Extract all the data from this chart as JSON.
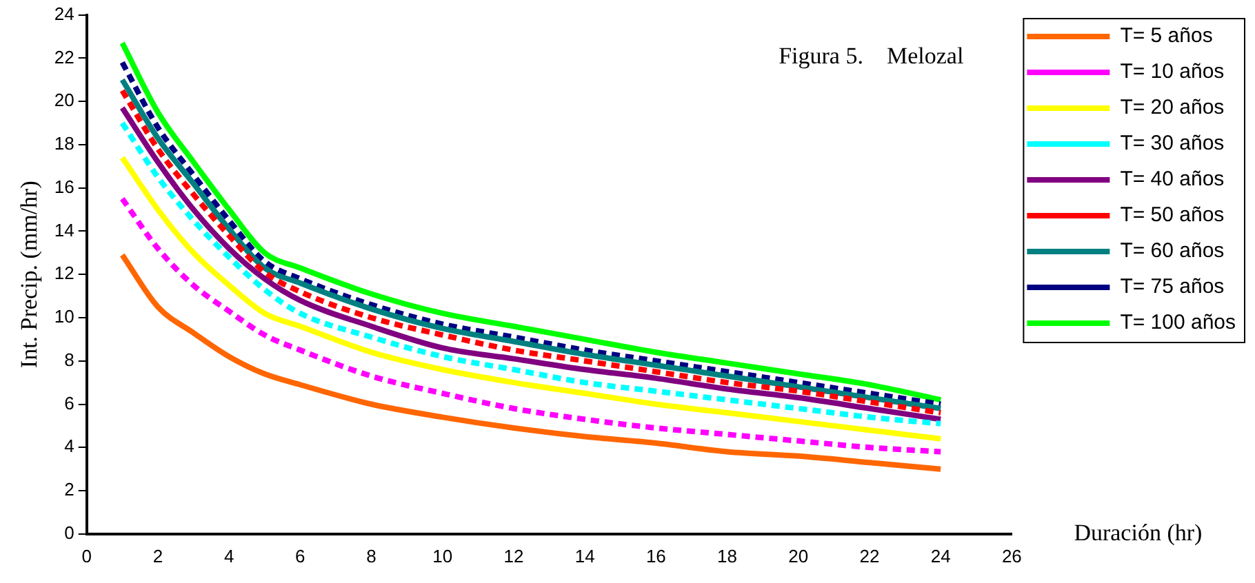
{
  "chart_data": {
    "type": "line",
    "title": "Figura 5.    Melozal",
    "xlabel": "Duración (hr)",
    "ylabel": "Int. Precip. (mm/hr)",
    "x": [
      1,
      2,
      3,
      4,
      5,
      6,
      8,
      10,
      12,
      14,
      16,
      18,
      20,
      22,
      24
    ],
    "series": [
      {
        "name": "T= 5 años",
        "color": "#ff6600",
        "line_style": "solid",
        "values": [
          12.9,
          10.5,
          9.3,
          8.2,
          7.4,
          6.9,
          6.0,
          5.4,
          4.9,
          4.5,
          4.2,
          3.8,
          3.6,
          3.3,
          3.0
        ]
      },
      {
        "name": "T= 10 años",
        "color": "#ff00ff",
        "line_style": "dashed",
        "values": [
          15.5,
          13.2,
          11.5,
          10.3,
          9.2,
          8.5,
          7.3,
          6.5,
          5.8,
          5.3,
          4.9,
          4.6,
          4.3,
          4.0,
          3.8
        ]
      },
      {
        "name": "T= 20 años",
        "color": "#ffff00",
        "line_style": "solid",
        "values": [
          17.4,
          15.0,
          13.0,
          11.5,
          10.2,
          9.6,
          8.4,
          7.6,
          7.0,
          6.5,
          6.0,
          5.6,
          5.2,
          4.8,
          4.4
        ]
      },
      {
        "name": "T= 30 años",
        "color": "#00ffff",
        "line_style": "dashed",
        "values": [
          19.0,
          16.5,
          14.5,
          12.8,
          11.3,
          10.2,
          9.1,
          8.2,
          7.6,
          7.0,
          6.6,
          6.2,
          5.8,
          5.4,
          5.1
        ]
      },
      {
        "name": "T= 40 años",
        "color": "#800080",
        "line_style": "solid",
        "values": [
          19.7,
          17.2,
          15.0,
          13.2,
          11.8,
          10.8,
          9.6,
          8.6,
          8.1,
          7.6,
          7.2,
          6.7,
          6.3,
          5.8,
          5.3
        ]
      },
      {
        "name": "T= 50 años",
        "color": "#ff0000",
        "line_style": "dashed",
        "values": [
          20.5,
          17.8,
          15.7,
          13.8,
          12.1,
          11.2,
          10.0,
          9.2,
          8.5,
          8.0,
          7.5,
          7.0,
          6.6,
          6.1,
          5.6
        ]
      },
      {
        "name": "T= 60 años",
        "color": "#008080",
        "line_style": "solid",
        "values": [
          21.0,
          18.3,
          16.2,
          14.1,
          12.3,
          11.6,
          10.4,
          9.5,
          8.9,
          8.3,
          7.8,
          7.3,
          6.8,
          6.3,
          5.8
        ]
      },
      {
        "name": "T= 75 años",
        "color": "#000080",
        "line_style": "dashed",
        "values": [
          21.8,
          18.8,
          16.6,
          14.5,
          12.6,
          11.8,
          10.6,
          9.7,
          9.1,
          8.5,
          8.0,
          7.5,
          7.0,
          6.5,
          6.0
        ]
      },
      {
        "name": "T= 100 años",
        "color": "#00ff00",
        "line_style": "solid",
        "values": [
          22.7,
          19.5,
          17.2,
          15.0,
          13.0,
          12.3,
          11.1,
          10.2,
          9.6,
          9.0,
          8.4,
          7.9,
          7.4,
          6.9,
          6.2
        ]
      }
    ],
    "xlim": [
      0,
      26
    ],
    "xticks": [
      0,
      2,
      4,
      6,
      8,
      10,
      12,
      14,
      16,
      18,
      20,
      22,
      24,
      26
    ],
    "ylim": [
      0,
      24
    ],
    "yticks": [
      0,
      2,
      4,
      6,
      8,
      10,
      12,
      14,
      16,
      18,
      20,
      22,
      24
    ],
    "grid": false,
    "legend": "right",
    "marker": "none"
  }
}
